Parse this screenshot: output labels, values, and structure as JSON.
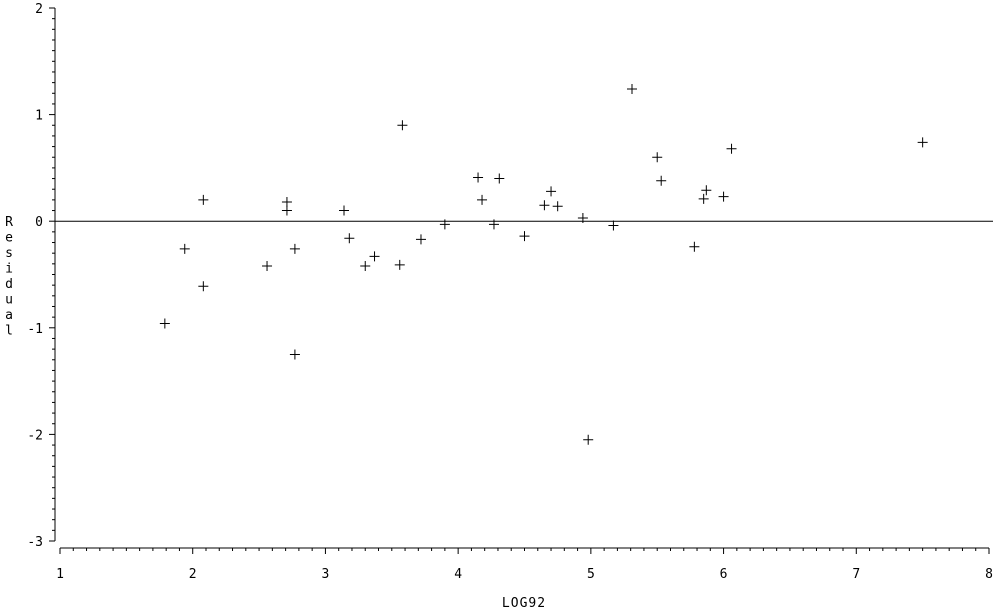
{
  "chart_data": {
    "type": "scatter",
    "xlabel": "LOG92",
    "ylabel": "Residual",
    "xlim": [
      1,
      8
    ],
    "ylim": [
      -3,
      2
    ],
    "x_ticks": [
      "1",
      "2",
      "3",
      "4",
      "5",
      "6",
      "7",
      "8"
    ],
    "y_ticks": [
      "2",
      "1",
      "0",
      "-1",
      "-2",
      "-3"
    ],
    "reference_line_y": 0,
    "marker": "plus",
    "grid": false,
    "legend": "none",
    "points": [
      {
        "x": 1.79,
        "y": -0.96
      },
      {
        "x": 1.94,
        "y": -0.26
      },
      {
        "x": 2.08,
        "y": 0.2
      },
      {
        "x": 2.08,
        "y": -0.61
      },
      {
        "x": 2.56,
        "y": -0.42
      },
      {
        "x": 2.71,
        "y": 0.18
      },
      {
        "x": 2.71,
        "y": 0.1
      },
      {
        "x": 2.77,
        "y": -0.26
      },
      {
        "x": 2.77,
        "y": -1.25
      },
      {
        "x": 3.14,
        "y": 0.1
      },
      {
        "x": 3.18,
        "y": -0.16
      },
      {
        "x": 3.3,
        "y": -0.42
      },
      {
        "x": 3.37,
        "y": -0.33
      },
      {
        "x": 3.56,
        "y": -0.41
      },
      {
        "x": 3.58,
        "y": 0.9
      },
      {
        "x": 3.72,
        "y": -0.17
      },
      {
        "x": 3.9,
        "y": -0.03
      },
      {
        "x": 4.15,
        "y": 0.41
      },
      {
        "x": 4.18,
        "y": 0.2
      },
      {
        "x": 4.27,
        "y": -0.03
      },
      {
        "x": 4.31,
        "y": 0.4
      },
      {
        "x": 4.5,
        "y": -0.14
      },
      {
        "x": 4.65,
        "y": 0.15
      },
      {
        "x": 4.7,
        "y": 0.28
      },
      {
        "x": 4.75,
        "y": 0.14
      },
      {
        "x": 4.94,
        "y": 0.03
      },
      {
        "x": 4.98,
        "y": -2.05
      },
      {
        "x": 5.17,
        "y": -0.04
      },
      {
        "x": 5.31,
        "y": 1.24
      },
      {
        "x": 5.5,
        "y": 0.6
      },
      {
        "x": 5.53,
        "y": 0.38
      },
      {
        "x": 5.78,
        "y": -0.24
      },
      {
        "x": 5.85,
        "y": 0.21
      },
      {
        "x": 5.87,
        "y": 0.29
      },
      {
        "x": 6.0,
        "y": 0.23
      },
      {
        "x": 6.06,
        "y": 0.68
      },
      {
        "x": 7.5,
        "y": 0.74
      }
    ]
  }
}
